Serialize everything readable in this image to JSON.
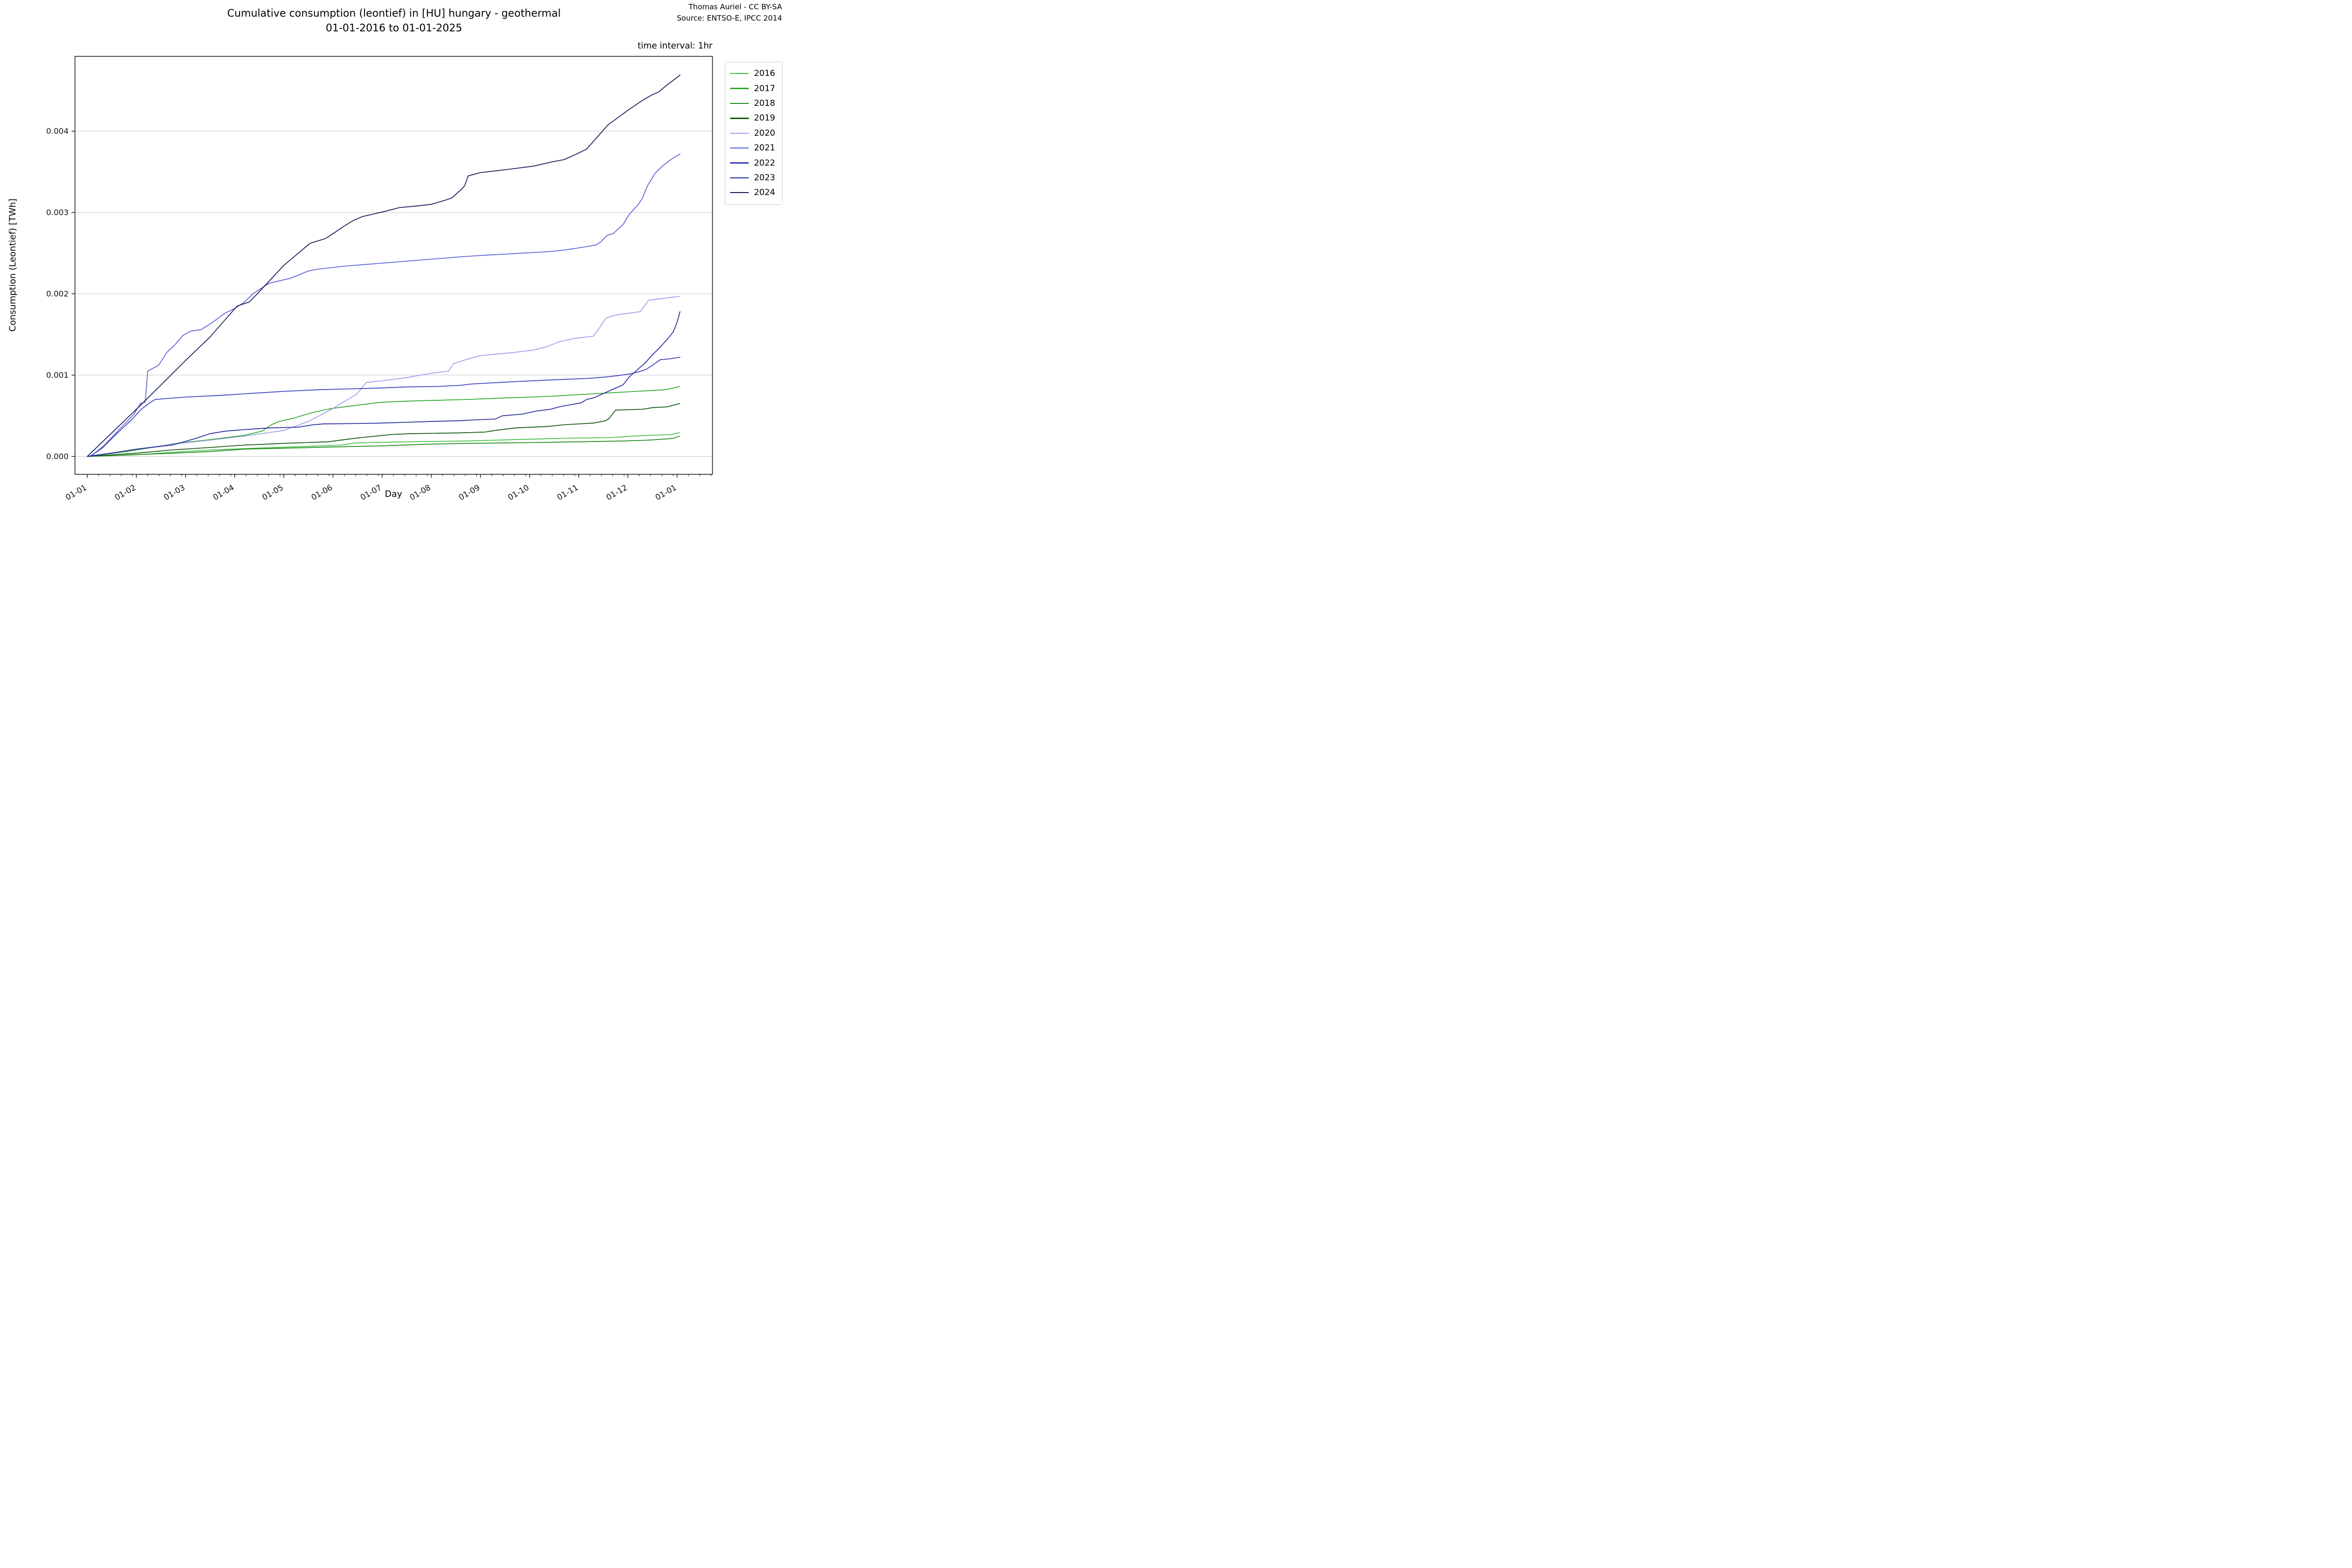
{
  "header": {
    "title_line1": "Cumulative consumption (leontief) in [HU] hungary - geothermal",
    "title_line2": "01-01-2016 to 01-01-2025",
    "attribution_line1": "Thomas Auriel - CC BY-SA",
    "attribution_line2": "Source: ENTSO-E, IPCC 2014",
    "time_interval_note": "time interval: 1hr"
  },
  "chart_data": {
    "type": "line",
    "title": "Cumulative consumption (leontief) in [HU] hungary - geothermal 01-01-2016 to 01-01-2025",
    "xlabel": "Day",
    "ylabel": "Consumption (Leontief) [TWh]",
    "x_unit": "months since 01-01 (month-day axis, one full year)",
    "x_tick_labels": [
      "01-01",
      "01-02",
      "01-03",
      "01-04",
      "01-05",
      "01-06",
      "01-07",
      "01-08",
      "01-09",
      "01-10",
      "01-11",
      "01-12",
      "01-01"
    ],
    "y_ticks": [
      0.0,
      0.001,
      0.002,
      0.003,
      0.004
    ],
    "y_tick_labels": [
      "0.000",
      "0.001",
      "0.002",
      "0.003",
      "0.004"
    ],
    "xlim": [
      -0.25,
      12.72
    ],
    "ylim": [
      -0.00022,
      0.00492
    ],
    "grid": "horizontal",
    "grid_color": "#c9c9c9",
    "spine_color": "#1a1a1a",
    "legend_position": "outside-top-right",
    "series": [
      {
        "name": "2016",
        "color": "#42c142",
        "points": [
          [
            0,
            0
          ],
          [
            0.5,
            1e-05
          ],
          [
            1,
            2e-05
          ],
          [
            1.7,
            5e-05
          ],
          [
            2.5,
            8e-05
          ],
          [
            3.37,
            0.0001
          ],
          [
            4.5,
            0.000125
          ],
          [
            5.15,
            0.00014
          ],
          [
            5.45,
            0.000165
          ],
          [
            6.5,
            0.00018
          ],
          [
            7.7,
            0.00019
          ],
          [
            8.3,
            0.0002
          ],
          [
            8.9,
            0.00021
          ],
          [
            9.8,
            0.000225
          ],
          [
            10.6,
            0.00023
          ],
          [
            11.1,
            0.00025
          ],
          [
            11.5,
            0.00026
          ],
          [
            11.9,
            0.00027
          ],
          [
            11.98,
            0.000285
          ],
          [
            12.05,
            0.00029
          ]
        ]
      },
      {
        "name": "2017",
        "color": "#2ea82e",
        "points": [
          [
            0,
            0
          ],
          [
            0.8,
            6e-05
          ],
          [
            1.4,
            0.00012
          ],
          [
            1.73,
            0.000155
          ],
          [
            2.4,
            0.0002
          ],
          [
            3.2,
            0.00026
          ],
          [
            3.55,
            0.00031
          ],
          [
            3.75,
            0.00039
          ],
          [
            3.9,
            0.00043
          ],
          [
            4.2,
            0.00047
          ],
          [
            4.36,
            0.0005
          ],
          [
            4.58,
            0.00054
          ],
          [
            4.97,
            0.00059
          ],
          [
            5.5,
            0.00063
          ],
          [
            5.96,
            0.000665
          ],
          [
            6.51,
            0.00068
          ],
          [
            7.1,
            0.00069
          ],
          [
            7.7,
            0.0007
          ],
          [
            8.56,
            0.00072
          ],
          [
            9.43,
            0.00074
          ],
          [
            10.3,
            0.00077
          ],
          [
            11.17,
            0.0008
          ],
          [
            11.76,
            0.00082
          ],
          [
            12.05,
            0.00086
          ]
        ]
      },
      {
        "name": "2018",
        "color": "#1f8a1f",
        "points": [
          [
            0,
            0
          ],
          [
            0.9,
            2e-05
          ],
          [
            1.73,
            4e-05
          ],
          [
            2.5,
            6e-05
          ],
          [
            3.2,
            9e-05
          ],
          [
            4.9,
            0.000115
          ],
          [
            6,
            0.00013
          ],
          [
            6.9,
            0.00015
          ],
          [
            7.7,
            0.00016
          ],
          [
            9,
            0.00017
          ],
          [
            10,
            0.00018
          ],
          [
            10.9,
            0.00019
          ],
          [
            11.4,
            0.0002
          ],
          [
            11.9,
            0.00022
          ],
          [
            12.05,
            0.00025
          ]
        ]
      },
      {
        "name": "2019",
        "color": "#125812",
        "points": [
          [
            0,
            0
          ],
          [
            1,
            4e-05
          ],
          [
            1.73,
            8e-05
          ],
          [
            2.5,
            0.00011
          ],
          [
            3.2,
            0.00014
          ],
          [
            4,
            0.00016
          ],
          [
            4.9,
            0.00018
          ],
          [
            5.4,
            0.00022
          ],
          [
            5.7,
            0.00024
          ],
          [
            6.2,
            0.00027
          ],
          [
            6.6,
            0.00028
          ],
          [
            7.6,
            0.00029
          ],
          [
            8.1,
            0.0003
          ],
          [
            8.3,
            0.00032
          ],
          [
            8.7,
            0.00035
          ],
          [
            9.4,
            0.00037
          ],
          [
            9.7,
            0.00039
          ],
          [
            10.3,
            0.00041
          ],
          [
            10.55,
            0.00044
          ],
          [
            10.62,
            0.00047
          ],
          [
            10.75,
            0.00057
          ],
          [
            11.3,
            0.00058
          ],
          [
            11.5,
            0.0006
          ],
          [
            11.8,
            0.00061
          ],
          [
            12.05,
            0.00065
          ]
        ]
      },
      {
        "name": "2020",
        "color": "#9aa0e8",
        "points": [
          [
            0,
            0
          ],
          [
            0.9,
            8e-05
          ],
          [
            1.73,
            0.00015
          ],
          [
            2.5,
            0.0002
          ],
          [
            3.2,
            0.00025
          ],
          [
            4,
            0.00032
          ],
          [
            4.5,
            0.00043
          ],
          [
            4.97,
            0.00058
          ],
          [
            5.3,
            0.0007
          ],
          [
            5.47,
            0.00076
          ],
          [
            5.68,
            0.00091
          ],
          [
            6,
            0.00093
          ],
          [
            6.5,
            0.00097
          ],
          [
            6.98,
            0.00102
          ],
          [
            7.35,
            0.00105
          ],
          [
            7.45,
            0.00114
          ],
          [
            7.7,
            0.00119
          ],
          [
            8,
            0.00124
          ],
          [
            8.7,
            0.00128
          ],
          [
            9.1,
            0.00131
          ],
          [
            9.35,
            0.00135
          ],
          [
            9.6,
            0.00141
          ],
          [
            9.9,
            0.00145
          ],
          [
            10.3,
            0.00148
          ],
          [
            10.42,
            0.00158
          ],
          [
            10.55,
            0.0017
          ],
          [
            10.75,
            0.00174
          ],
          [
            11.25,
            0.00178
          ],
          [
            11.42,
            0.00192
          ],
          [
            11.8,
            0.00195
          ],
          [
            12.05,
            0.00197
          ]
        ]
      },
      {
        "name": "2021",
        "color": "#5b61d6",
        "points": [
          [
            0.07,
            0
          ],
          [
            0.35,
            0.00014
          ],
          [
            0.65,
            0.00033
          ],
          [
            0.95,
            0.00052
          ],
          [
            1.08,
            0.00065
          ],
          [
            1.18,
            0.00067
          ],
          [
            1.23,
            0.00105
          ],
          [
            1.45,
            0.00112
          ],
          [
            1.62,
            0.00128
          ],
          [
            1.78,
            0.00137
          ],
          [
            1.95,
            0.00149
          ],
          [
            2.1,
            0.00154
          ],
          [
            2.32,
            0.00156
          ],
          [
            2.55,
            0.00165
          ],
          [
            2.8,
            0.00176
          ],
          [
            3.0,
            0.00182
          ],
          [
            3.2,
            0.0019
          ],
          [
            3.37,
            0.002
          ],
          [
            3.7,
            0.00213
          ],
          [
            4.13,
            0.00219
          ],
          [
            4.5,
            0.00228
          ],
          [
            4.66,
            0.0023
          ],
          [
            5.22,
            0.00234
          ],
          [
            5.85,
            0.00237
          ],
          [
            6.47,
            0.0024
          ],
          [
            7.09,
            0.00243
          ],
          [
            7.72,
            0.00246
          ],
          [
            8.27,
            0.00248
          ],
          [
            8.85,
            0.0025
          ],
          [
            9.43,
            0.00252
          ],
          [
            9.73,
            0.00254
          ],
          [
            10.16,
            0.00258
          ],
          [
            10.35,
            0.0026
          ],
          [
            10.45,
            0.00264
          ],
          [
            10.58,
            0.00272
          ],
          [
            10.7,
            0.00274
          ],
          [
            10.9,
            0.00285
          ],
          [
            11.03,
            0.00298
          ],
          [
            11.2,
            0.00309
          ],
          [
            11.29,
            0.00317
          ],
          [
            11.4,
            0.00333
          ],
          [
            11.55,
            0.00348
          ],
          [
            11.7,
            0.00357
          ],
          [
            11.87,
            0.00365
          ],
          [
            12.06,
            0.00372
          ]
        ]
      },
      {
        "name": "2022",
        "color": "#3b40bc",
        "points": [
          [
            0.05,
            0
          ],
          [
            0.3,
            0.0001
          ],
          [
            0.6,
            0.00028
          ],
          [
            0.9,
            0.00045
          ],
          [
            1.1,
            0.00058
          ],
          [
            1.25,
            0.00065
          ],
          [
            1.38,
            0.0007
          ],
          [
            2,
            0.00073
          ],
          [
            2.7,
            0.00075
          ],
          [
            3.2,
            0.00077
          ],
          [
            4,
            0.0008
          ],
          [
            4.7,
            0.00082
          ],
          [
            5.3,
            0.00083
          ],
          [
            5.9,
            0.00084
          ],
          [
            6.5,
            0.000855
          ],
          [
            7.1,
            0.00086
          ],
          [
            7.6,
            0.000875
          ],
          [
            7.8,
            0.00089
          ],
          [
            8.7,
            0.00092
          ],
          [
            9.4,
            0.00094
          ],
          [
            10.2,
            0.00096
          ],
          [
            10.6,
            0.00098
          ],
          [
            11,
            0.00101
          ],
          [
            11.22,
            0.00104
          ],
          [
            11.37,
            0.00107
          ],
          [
            11.52,
            0.00113
          ],
          [
            11.66,
            0.00119
          ],
          [
            11.85,
            0.0012
          ],
          [
            12.06,
            0.00122
          ]
        ]
      },
      {
        "name": "2023",
        "color": "#252b9c",
        "points": [
          [
            0,
            0
          ],
          [
            0.5,
            4e-05
          ],
          [
            1,
            9e-05
          ],
          [
            1.73,
            0.00014
          ],
          [
            2.2,
            0.00022
          ],
          [
            2.5,
            0.00028
          ],
          [
            2.8,
            0.00031
          ],
          [
            3.2,
            0.00033
          ],
          [
            3.7,
            0.00035
          ],
          [
            4.3,
            0.00036
          ],
          [
            4.6,
            0.00039
          ],
          [
            4.8,
            0.0004
          ],
          [
            5.5,
            0.000405
          ],
          [
            6,
            0.00041
          ],
          [
            6.5,
            0.00042
          ],
          [
            7,
            0.00043
          ],
          [
            7.6,
            0.00044
          ],
          [
            7.9,
            0.00045
          ],
          [
            8.3,
            0.00046
          ],
          [
            8.45,
            0.0005
          ],
          [
            8.85,
            0.00052
          ],
          [
            9.15,
            0.00056
          ],
          [
            9.43,
            0.00058
          ],
          [
            9.6,
            0.00061
          ],
          [
            9.87,
            0.00064
          ],
          [
            10.05,
            0.00066
          ],
          [
            10.16,
            0.0007
          ],
          [
            10.3,
            0.00072
          ],
          [
            10.45,
            0.00076
          ],
          [
            10.6,
            0.0008
          ],
          [
            10.9,
            0.00088
          ],
          [
            11.03,
            0.00098
          ],
          [
            11.2,
            0.00107
          ],
          [
            11.35,
            0.00115
          ],
          [
            11.5,
            0.00125
          ],
          [
            11.65,
            0.00134
          ],
          [
            11.8,
            0.00144
          ],
          [
            11.92,
            0.00153
          ],
          [
            12.0,
            0.00165
          ],
          [
            12.06,
            0.00178
          ]
        ]
      },
      {
        "name": "2024",
        "color": "#171b57",
        "points": [
          [
            0,
            0
          ],
          [
            0.5,
            0.00029
          ],
          [
            1,
            0.00058
          ],
          [
            1.52,
            0.00089
          ],
          [
            2,
            0.00118
          ],
          [
            2.5,
            0.00147
          ],
          [
            3.05,
            0.00185
          ],
          [
            3.3,
            0.0019
          ],
          [
            3.46,
            0.002
          ],
          [
            4,
            0.00235
          ],
          [
            4.53,
            0.00262
          ],
          [
            4.85,
            0.00268
          ],
          [
            5.05,
            0.00276
          ],
          [
            5.22,
            0.00283
          ],
          [
            5.41,
            0.0029
          ],
          [
            5.6,
            0.00295
          ],
          [
            6.03,
            0.00301
          ],
          [
            6.35,
            0.00306
          ],
          [
            6.7,
            0.00308
          ],
          [
            7,
            0.0031
          ],
          [
            7.28,
            0.00315
          ],
          [
            7.42,
            0.00318
          ],
          [
            7.62,
            0.00329
          ],
          [
            7.68,
            0.00333
          ],
          [
            7.75,
            0.00345
          ],
          [
            8,
            0.00349
          ],
          [
            8.56,
            0.00353
          ],
          [
            9.08,
            0.00357
          ],
          [
            9.44,
            0.00362
          ],
          [
            9.7,
            0.00365
          ],
          [
            9.96,
            0.00372
          ],
          [
            10.16,
            0.00378
          ],
          [
            10.6,
            0.00408
          ],
          [
            11.03,
            0.00427
          ],
          [
            11.3,
            0.00438
          ],
          [
            11.5,
            0.00445
          ],
          [
            11.62,
            0.00448
          ],
          [
            11.78,
            0.00456
          ],
          [
            12.06,
            0.00469
          ]
        ]
      }
    ]
  }
}
